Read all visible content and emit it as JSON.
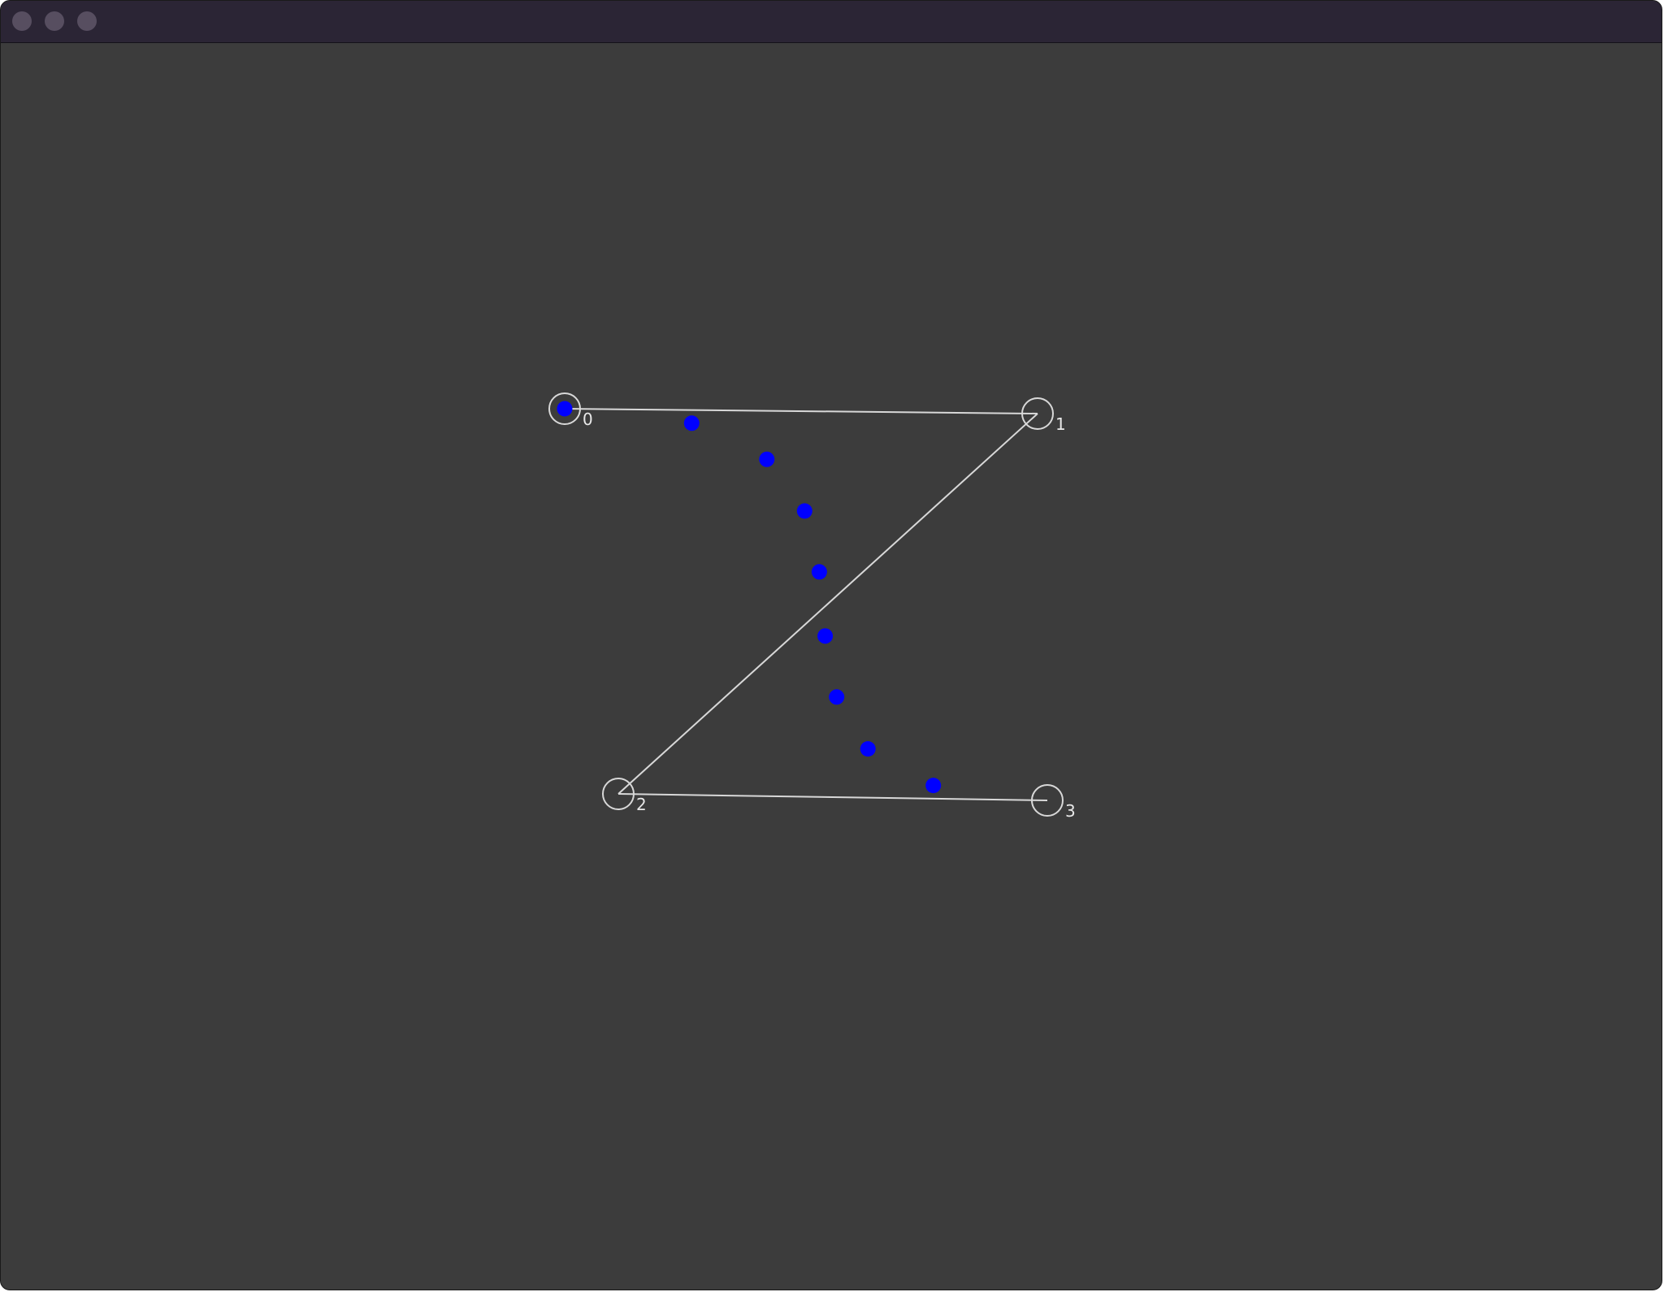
{
  "window": {
    "background_color": "#3c3c3c",
    "titlebar_color": "#2b2535",
    "window_buttons": [
      "close",
      "minimize",
      "zoom"
    ]
  },
  "control_points": [
    {
      "label": "0"
    },
    {
      "label": "1"
    },
    {
      "label": "2"
    },
    {
      "label": "3"
    }
  ],
  "curve_samples": {
    "count": 9,
    "color": "#0000ff"
  },
  "colors": {
    "control_polygon": "#d8d8d8",
    "control_handle": "#d8d8d8",
    "sample_point": "#0000ff",
    "label": "#e8e8e8"
  }
}
